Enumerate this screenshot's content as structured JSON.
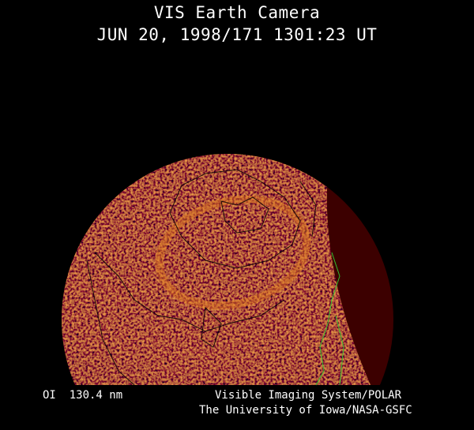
{
  "header": {
    "title": "VIS Earth Camera",
    "timestamp": "JUN 20, 1998/171 1301:23 UT"
  },
  "image": {
    "subject": "earth-auroral-image",
    "colors": {
      "dayside": "#a0400a",
      "nightside": "#3c0000",
      "coastline": "#000000",
      "coastline_terminator": "#30c030"
    }
  },
  "footer": {
    "wavelength": "OI  130.4 nm",
    "instrument": "Visible Imaging System/POLAR",
    "institution": "The University of Iowa/NASA-GSFC"
  }
}
